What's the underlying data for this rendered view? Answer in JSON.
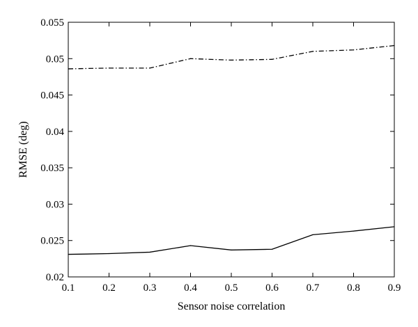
{
  "chart_data": {
    "type": "line",
    "title": "",
    "xlabel": "Sensor noise correlation",
    "ylabel": "RMSE (deg)",
    "xlim": [
      0.1,
      0.9
    ],
    "ylim": [
      0.02,
      0.055
    ],
    "xticks": [
      0.1,
      0.2,
      0.3,
      0.4,
      0.5,
      0.6,
      0.7,
      0.8,
      0.9
    ],
    "xtick_labels": [
      "0.1",
      "0.2",
      "0.3",
      "0.4",
      "0.5",
      "0.6",
      "0.7",
      "0.8",
      "0.9"
    ],
    "yticks": [
      0.02,
      0.025,
      0.03,
      0.035,
      0.04,
      0.045,
      0.05,
      0.055
    ],
    "ytick_labels": [
      "0.02",
      "0.025",
      "0.03",
      "0.035",
      "0.04",
      "0.045",
      "0.05",
      "0.055"
    ],
    "grid": false,
    "legend": "none",
    "x": [
      0.1,
      0.2,
      0.3,
      0.4,
      0.5,
      0.6,
      0.7,
      0.8,
      0.9
    ],
    "series": [
      {
        "style": "dash-dot",
        "color": "#000000",
        "values": [
          0.0486,
          0.0487,
          0.0487,
          0.05,
          0.0498,
          0.0499,
          0.051,
          0.0512,
          0.0518
        ]
      },
      {
        "style": "solid",
        "color": "#000000",
        "values": [
          0.0231,
          0.0232,
          0.0234,
          0.0243,
          0.0237,
          0.0238,
          0.0258,
          0.0263,
          0.0269
        ]
      }
    ]
  }
}
